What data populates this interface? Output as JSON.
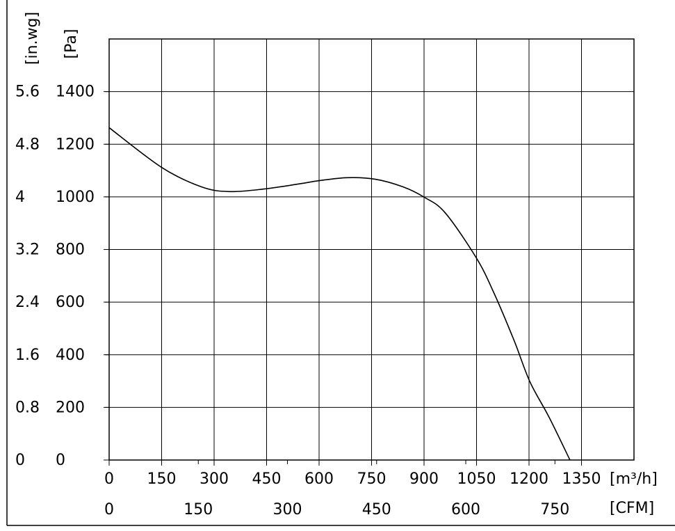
{
  "chart_data": {
    "type": "line",
    "x": [
      0,
      150,
      264,
      344,
      443,
      542,
      602,
      681,
      761,
      840,
      900,
      960,
      1049,
      1099,
      1158,
      1202,
      1258,
      1317
    ],
    "values": [
      1263,
      1112,
      1038,
      1020,
      1030,
      1049,
      1062,
      1073,
      1067,
      1038,
      999,
      940,
      769,
      637,
      452,
      299,
      161,
      0
    ],
    "color": "#000000",
    "xlim": [
      0,
      1500
    ],
    "xticks": [
      0,
      150,
      300,
      450,
      600,
      750,
      900,
      1050,
      1200,
      1350
    ],
    "ylim": [
      0,
      1600
    ],
    "yticks": [
      0,
      200,
      400,
      600,
      800,
      1000,
      1200,
      1400
    ],
    "x2lim": [
      0,
      883
    ],
    "x2ticks": [
      0,
      150,
      300,
      450,
      600,
      750
    ],
    "y2lim": [
      0,
      6.4
    ],
    "y2ticks": [
      0,
      0.8,
      1.6,
      2.4,
      3.2,
      4.0,
      4.8,
      5.6
    ],
    "xlabel": "[m³/h]",
    "x2label": "[CFM]",
    "ylabel": "[Pa]",
    "y2label": "[in.wg]",
    "grid": true
  }
}
